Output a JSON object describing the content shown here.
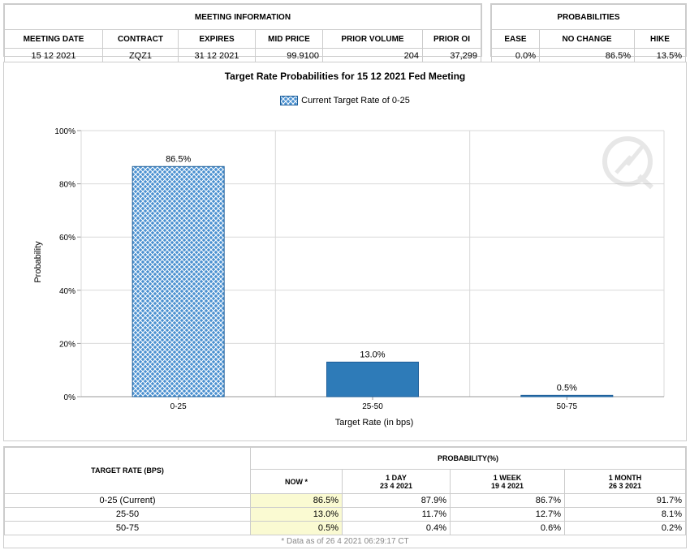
{
  "meeting_info": {
    "title": "MEETING INFORMATION",
    "headers": [
      "MEETING DATE",
      "CONTRACT",
      "EXPIRES",
      "MID PRICE",
      "PRIOR VOLUME",
      "PRIOR OI"
    ],
    "values": [
      "15 12 2021",
      "ZQZ1",
      "31 12 2021",
      "99.9100",
      "204",
      "37,299"
    ]
  },
  "probabilities": {
    "title": "PROBABILITIES",
    "headers": [
      "EASE",
      "NO CHANGE",
      "HIKE"
    ],
    "values": [
      "0.0%",
      "86.5%",
      "13.5%"
    ]
  },
  "chart_data": {
    "type": "bar",
    "title": "Target Rate Probabilities for 15 12 2021 Fed Meeting",
    "legend": "Current Target Rate of 0-25",
    "xlabel": "Target Rate (in bps)",
    "ylabel": "Probability",
    "categories": [
      "0-25",
      "25-50",
      "50-75"
    ],
    "values": [
      86.5,
      13.0,
      0.5
    ],
    "data_labels": [
      "86.5%",
      "13.0%",
      "0.5%"
    ],
    "ylim": [
      0,
      100
    ],
    "yticks": [
      "0%",
      "20%",
      "40%",
      "60%",
      "80%",
      "100%"
    ],
    "highlight_index": 0,
    "colors": {
      "bar": "#2e7bb8",
      "hatch_bg": "#4a90d0",
      "hatch_line": "#ffffff"
    },
    "grid": true
  },
  "bottom_table": {
    "target_rate_header": "TARGET RATE (BPS)",
    "probability_header": "PROBABILITY(%)",
    "columns": [
      {
        "label": "NOW *",
        "sub": ""
      },
      {
        "label": "1 DAY",
        "sub": "23 4 2021"
      },
      {
        "label": "1 WEEK",
        "sub": "19 4 2021"
      },
      {
        "label": "1 MONTH",
        "sub": "26 3 2021"
      }
    ],
    "rows": [
      {
        "rate": "0-25 (Current)",
        "values": [
          "86.5%",
          "87.9%",
          "86.7%",
          "91.7%"
        ]
      },
      {
        "rate": "25-50",
        "values": [
          "13.0%",
          "11.7%",
          "12.7%",
          "8.1%"
        ]
      },
      {
        "rate": "50-75",
        "values": [
          "0.5%",
          "0.4%",
          "0.6%",
          "0.2%"
        ]
      }
    ],
    "footnote": "* Data as of 26 4 2021 06:29:17 CT"
  }
}
